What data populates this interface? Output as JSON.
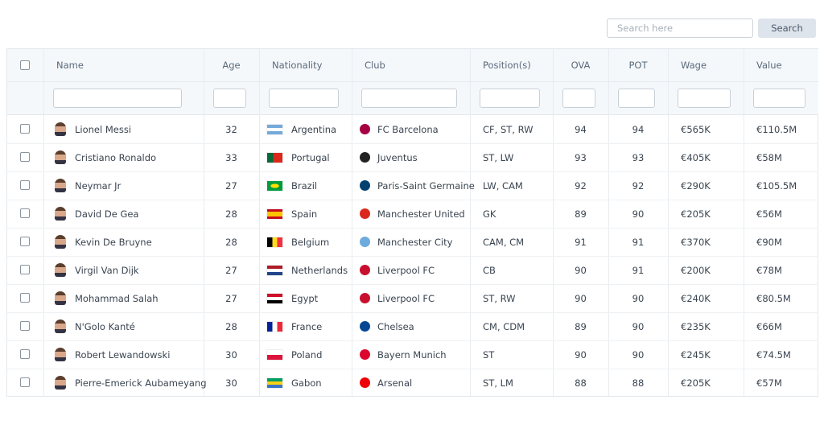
{
  "search": {
    "placeholder": "Search here",
    "button": "Search"
  },
  "table": {
    "columns": [
      "Name",
      "Age",
      "Nationality",
      "Club",
      "Position(s)",
      "OVA",
      "POT",
      "Wage",
      "Value"
    ],
    "rows": [
      [
        "Lionel Messi",
        32,
        "Argentina",
        "FC Barcelona",
        "CF, ST, RW",
        94,
        94,
        "€565K",
        "€110.5M"
      ],
      [
        "Cristiano Ronaldo",
        33,
        "Portugal",
        "Juventus",
        "ST, LW",
        93,
        93,
        "€405K",
        "€58M"
      ],
      [
        "Neymar Jr",
        27,
        "Brazil",
        "Paris-Saint Germaine",
        "LW, CAM",
        92,
        92,
        "€290K",
        "€105.5M"
      ],
      [
        "David De Gea",
        28,
        "Spain",
        "Manchester United",
        "GK",
        89,
        90,
        "€205K",
        "€56M"
      ],
      [
        "Kevin De Bruyne",
        28,
        "Belgium",
        "Manchester City",
        "CAM, CM",
        91,
        91,
        "€370K",
        "€90M"
      ],
      [
        "Virgil Van Dijk",
        27,
        "Netherlands",
        "Liverpool FC",
        "CB",
        90,
        91,
        "€200K",
        "€78M"
      ],
      [
        "Mohammad Salah",
        27,
        "Egypt",
        "Liverpool FC",
        "ST, RW",
        90,
        90,
        "€240K",
        "€80.5M"
      ],
      [
        "N'Golo Kanté",
        28,
        "France",
        "Chelsea",
        "CM, CDM",
        89,
        90,
        "€235K",
        "€66M"
      ],
      [
        "Robert Lewandowski",
        30,
        "Poland",
        "Bayern Munich",
        "ST",
        90,
        90,
        "€245K",
        "€74.5M"
      ],
      [
        "Pierre-Emerick Aubameyang",
        30,
        "Gabon",
        "Arsenal",
        "ST, LM",
        88,
        88,
        "€205K",
        "€57M"
      ]
    ]
  }
}
